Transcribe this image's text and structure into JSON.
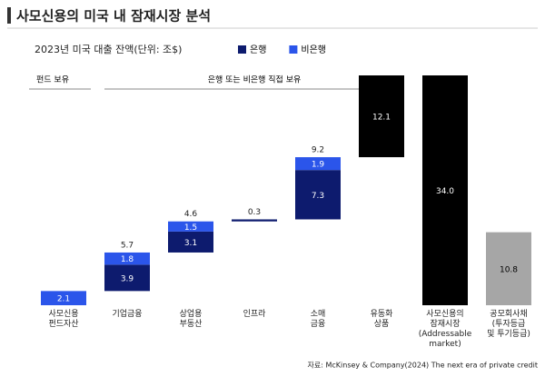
{
  "chart_data": {
    "type": "waterfall",
    "title": "사모신용의 미국 내 잠재시장 분석",
    "subtitle": "2023년 미국 대출 잔액(단위: 조$)",
    "annotations": [
      "펀드 보유",
      "은행 또는 비은행 직접 보유"
    ],
    "source": "자료: McKinsey & Company(2024) The next era of private credit",
    "categories": [
      "사모신용\n펀드자산",
      "기업금융",
      "상업용\n부동산",
      "인프라",
      "소매\n금융",
      "유동화\n상품",
      "사모신용의\n잠재시장\n(Addressable\nmarket)",
      "공모회사채\n(투자등급\n및 투기등급)"
    ],
    "measure": [
      "relative",
      "relative",
      "relative",
      "relative",
      "relative",
      "relative",
      "total",
      "total"
    ],
    "series": [
      {
        "name": "은행",
        "color": "#0d1b6e",
        "values": [
          null,
          3.9,
          3.1,
          0.3,
          7.3,
          null,
          null,
          null
        ]
      },
      {
        "name": "비은행",
        "color": "#2b55ea",
        "values": [
          2.1,
          1.8,
          1.5,
          null,
          1.9,
          null,
          null,
          null
        ]
      },
      {
        "color": "#000000",
        "values": [
          null,
          null,
          null,
          null,
          null,
          12.1,
          34.0,
          null
        ],
        "value_labels": [
          null,
          null,
          null,
          null,
          null,
          "12.1",
          "34.0",
          null
        ]
      },
      {
        "color": "#a6a6a6",
        "values": [
          null,
          null,
          null,
          null,
          null,
          null,
          null,
          10.8
        ]
      }
    ],
    "sum_labels": [
      null,
      5.7,
      4.6,
      0.3,
      9.2,
      null,
      null,
      null
    ],
    "ylim": [
      0,
      34
    ]
  }
}
